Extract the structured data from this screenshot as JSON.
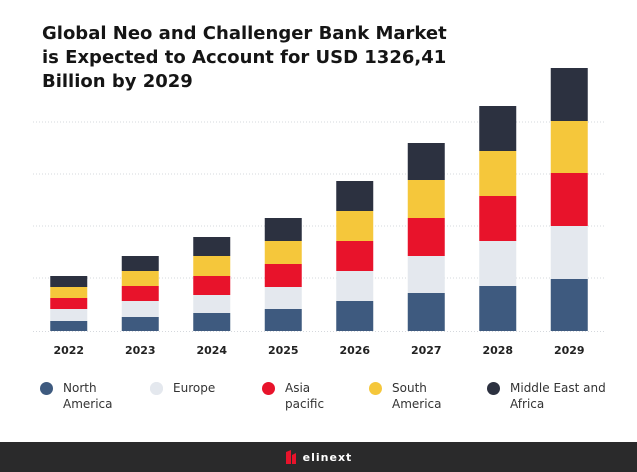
{
  "chart_data": {
    "type": "stacked_bar",
    "title": "Global Neo and Challenger Bank Market is Expected to Account for USD 1326,41 Billion by 2029",
    "categories": [
      "2022",
      "2023",
      "2024",
      "2025",
      "2026",
      "2027",
      "2028",
      "2029"
    ],
    "series": [
      {
        "name": "North America",
        "color": "#3e5a7f",
        "values": [
          10,
          14,
          18,
          22,
          30,
          38,
          45,
          52
        ]
      },
      {
        "name": "Europe",
        "color": "#e4e8ee",
        "values": [
          12,
          16,
          18,
          22,
          30,
          37,
          45,
          53
        ]
      },
      {
        "name": "Asia pacific",
        "color": "#e8132b",
        "values": [
          11,
          15,
          19,
          23,
          30,
          38,
          45,
          53
        ]
      },
      {
        "name": "South America",
        "color": "#f5c73b",
        "values": [
          11,
          15,
          20,
          23,
          30,
          38,
          45,
          52
        ]
      },
      {
        "name": "Middle East and Africa",
        "color": "#2c3140",
        "values": [
          11,
          15,
          19,
          23,
          30,
          37,
          45,
          53
        ]
      }
    ],
    "ylim": [
      0,
      280
    ],
    "gridlines": [
      53,
      105,
      157,
      209
    ],
    "grid": true
  },
  "brand": "elinext"
}
